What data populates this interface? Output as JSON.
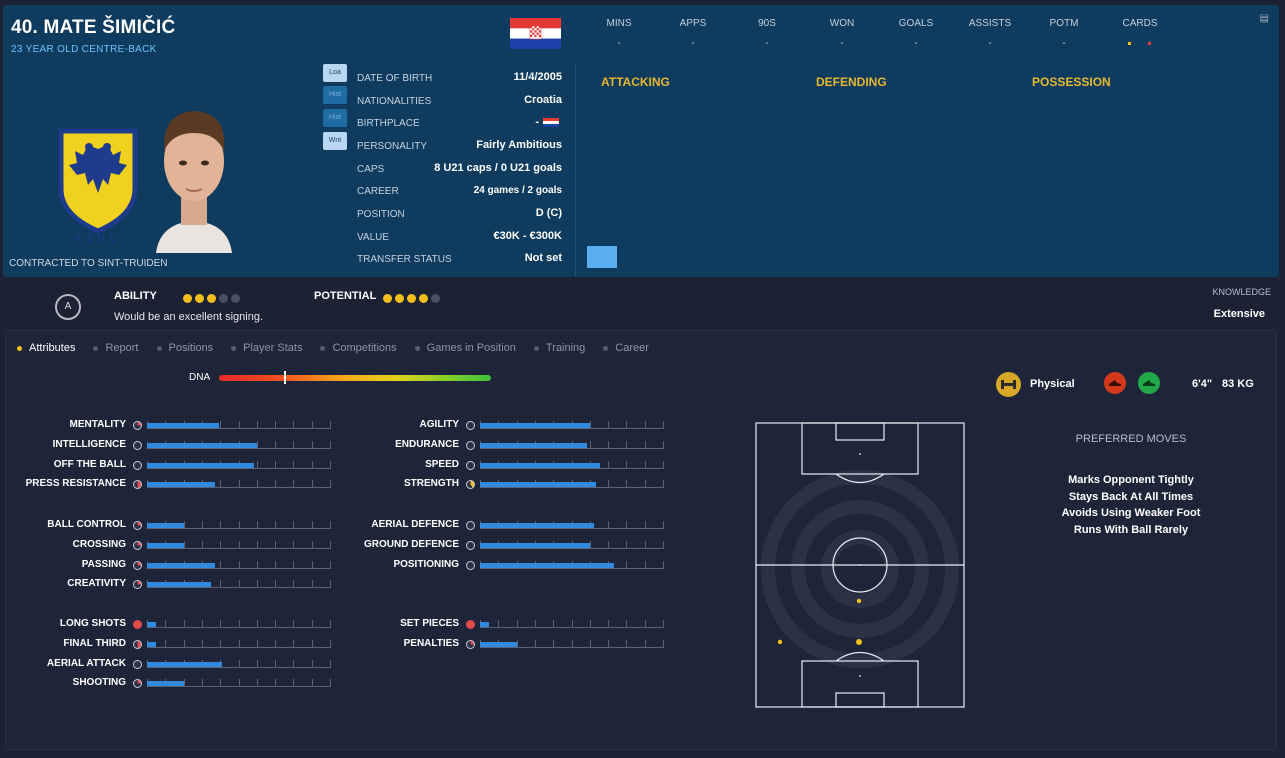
{
  "player": {
    "name": "40. MATE ŠIMIČIĆ",
    "subtitle": "23 YEAR OLD CENTRE-BACK",
    "contracted": "CONTRACTED TO SINT-TRUIDEN"
  },
  "side_buttons": [
    "Loa",
    "Hist",
    "Hist",
    "Wnt"
  ],
  "info": {
    "date_of_birth": {
      "label": "DATE OF BIRTH",
      "value": "11/4/2005"
    },
    "nationalities": {
      "label": "NATIONALITIES",
      "value": "Croatia"
    },
    "birthplace": {
      "label": "BIRTHPLACE",
      "value": "-"
    },
    "personality": {
      "label": "PERSONALITY",
      "value": "Fairly Ambitious"
    },
    "caps": {
      "label": "CAPS",
      "value": "8 U21 caps / 0 U21 goals"
    },
    "career": {
      "label": "CAREER",
      "value": "24 games /   2  goals"
    },
    "position": {
      "label": "POSITION",
      "value": "D (C)"
    },
    "value": {
      "label": "VALUE",
      "value": "€30K - €300K"
    },
    "transfer_status": {
      "label": "TRANSFER STATUS",
      "value": "Not set"
    }
  },
  "season_stats": {
    "headers": [
      "MINS",
      "APPS",
      "90S",
      "WON",
      "GOALS",
      "ASSISTS",
      "POTM",
      "CARDS"
    ],
    "values": [
      "-",
      "-",
      "-",
      "-",
      "-",
      "-",
      "-",
      ""
    ]
  },
  "performance_sections": [
    "ATTACKING",
    "DEFENDING",
    "POSSESSION"
  ],
  "ability": {
    "badge": "A",
    "ability_label": "ABILITY",
    "ability_stars": 3,
    "potential_label": "POTENTIAL",
    "potential_stars": 4,
    "max_stars": 5,
    "comment": "Would be an excellent signing.",
    "knowledge_label": "KNOWLEDGE",
    "knowledge_value": "Extensive"
  },
  "tabs": [
    "Attributes",
    "Report",
    "Positions",
    "Player Stats",
    "Competitions",
    "Games in Position",
    "Training",
    "Career"
  ],
  "dna": {
    "label": "DNA",
    "position": 0.24
  },
  "attributes": {
    "left": [
      {
        "name": "MENTALITY",
        "value": 0.39,
        "pie": "quarter"
      },
      {
        "name": "INTELLIGENCE",
        "value": 0.6,
        "pie": ""
      },
      {
        "name": "OFF THE BALL",
        "value": 0.58,
        "pie": ""
      },
      {
        "name": "PRESS RESISTANCE",
        "value": 0.37,
        "pie": "half"
      },
      {
        "name": "BALL CONTROL",
        "value": 0.2,
        "pie": "quarter"
      },
      {
        "name": "CROSSING",
        "value": 0.2,
        "pie": "quarter"
      },
      {
        "name": "PASSING",
        "value": 0.37,
        "pie": "quarter"
      },
      {
        "name": "CREATIVITY",
        "value": 0.35,
        "pie": "quarter"
      },
      {
        "name": "LONG SHOTS",
        "value": 0.05,
        "pie": "red"
      },
      {
        "name": "FINAL THIRD",
        "value": 0.05,
        "pie": "half"
      },
      {
        "name": "AERIAL ATTACK",
        "value": 0.41,
        "pie": ""
      },
      {
        "name": "SHOOTING",
        "value": 0.2,
        "pie": "quarter"
      }
    ],
    "right": [
      {
        "name": "AGILITY",
        "value": 0.6,
        "pie": ""
      },
      {
        "name": "ENDURANCE",
        "value": 0.58,
        "pie": ""
      },
      {
        "name": "SPEED",
        "value": 0.65,
        "pie": ""
      },
      {
        "name": "STRENGTH",
        "value": 0.63,
        "pie": "yellow"
      },
      {
        "name": "AERIAL DEFENCE",
        "value": 0.62,
        "pie": ""
      },
      {
        "name": "GROUND DEFENCE",
        "value": 0.6,
        "pie": ""
      },
      {
        "name": "POSITIONING",
        "value": 0.73,
        "pie": ""
      },
      {
        "name": "SET PIECES",
        "value": 0.05,
        "pie": "red"
      },
      {
        "name": "PENALTIES",
        "value": 0.2,
        "pie": "quarter"
      }
    ]
  },
  "physical": {
    "label": "Physical",
    "height": "6'4\"",
    "weight": "83 KG"
  },
  "preferred_moves": {
    "title": "PREFERRED MOVES",
    "items": [
      "Marks Opponent Tightly",
      "Stays Back At All Times",
      "Avoids Using Weaker Foot",
      "Runs With Ball Rarely"
    ]
  },
  "colors": {
    "accent": "#f2c01b",
    "header_bg": "#0e3b5e",
    "bar": "#2f8ae0",
    "link": "#6cc3ff"
  }
}
